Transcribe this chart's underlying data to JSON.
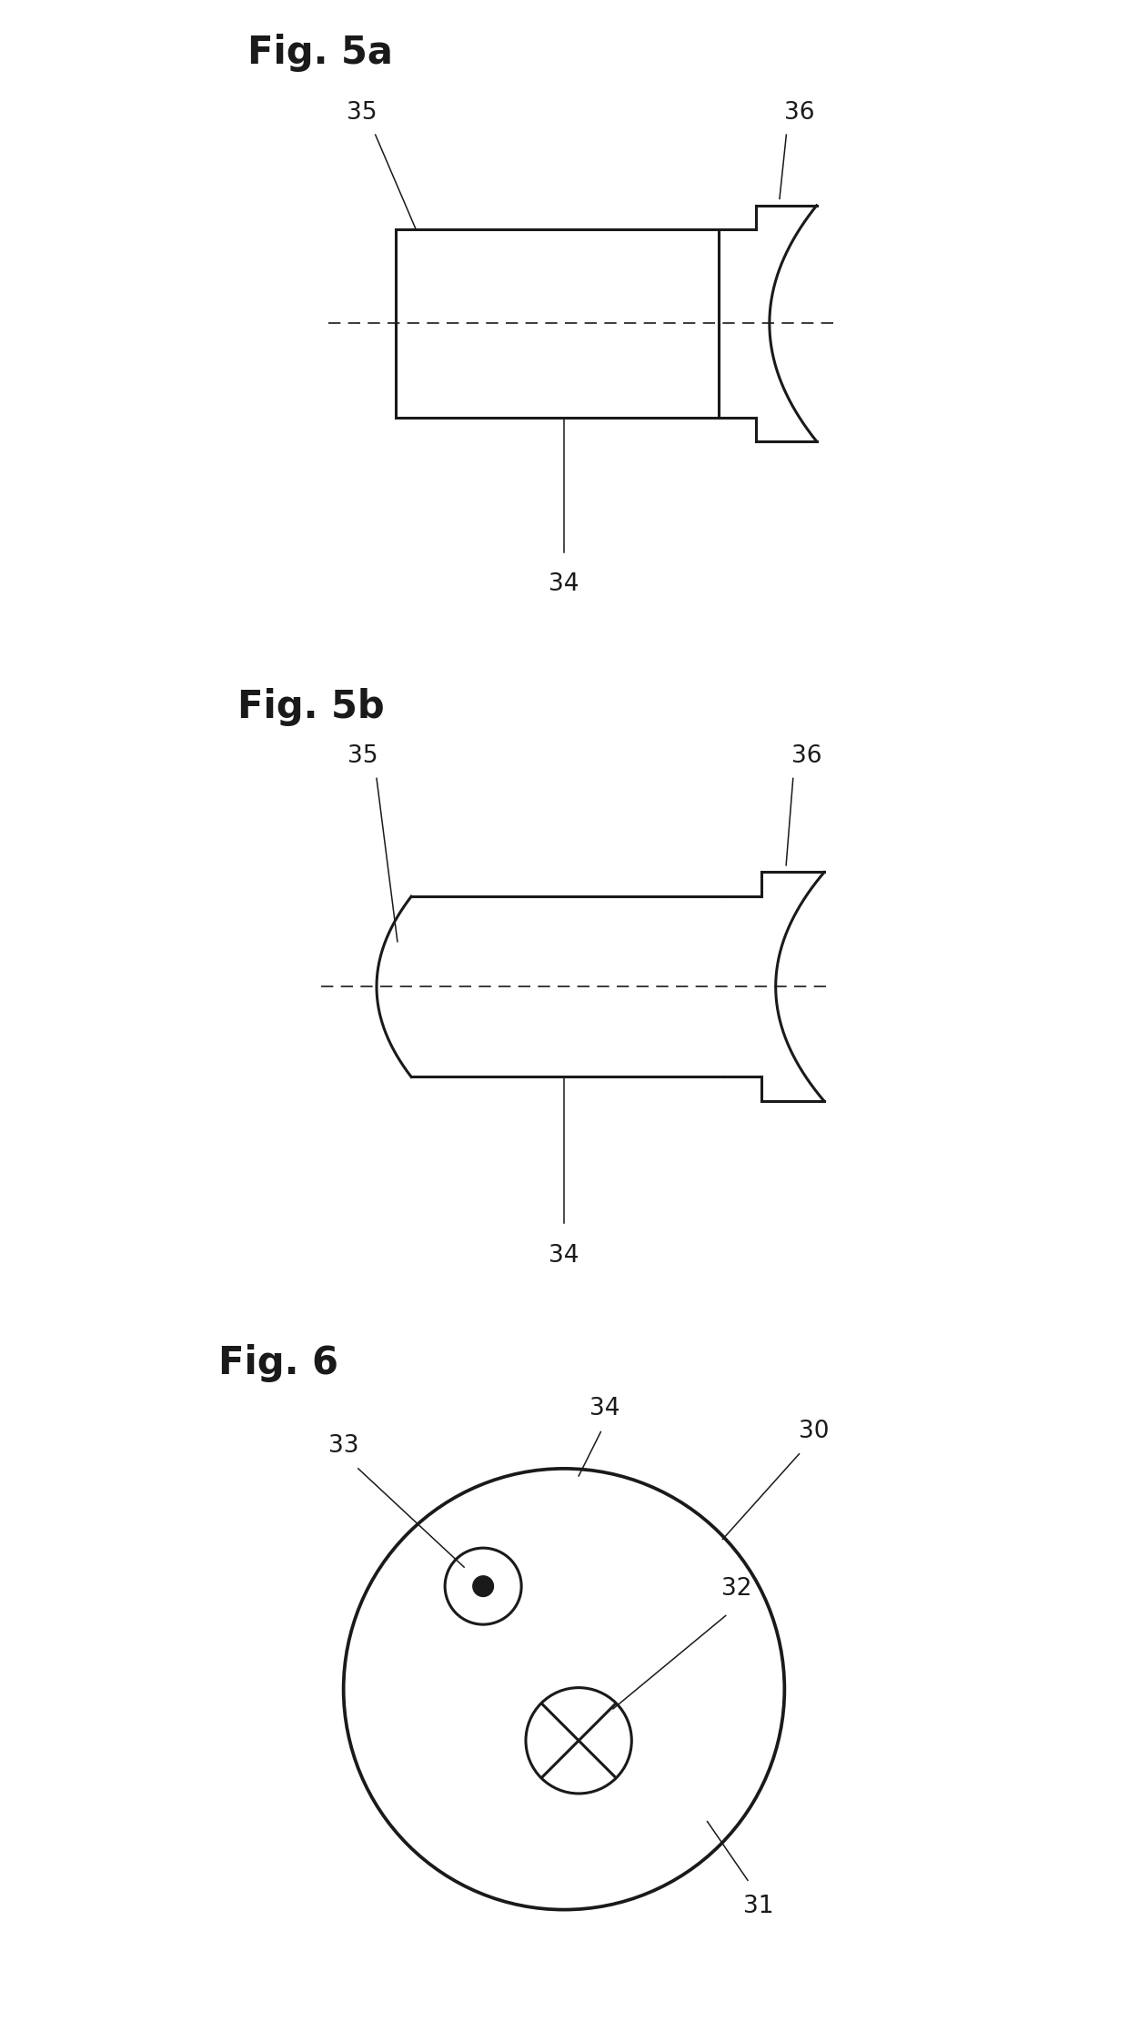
{
  "fig_title_5a": "Fig. 5a",
  "fig_title_5b": "Fig. 5b",
  "fig_title_6": "Fig. 6",
  "bg_color": "#ffffff",
  "line_color": "#1a1a1a",
  "fig5a_label_35": "35",
  "fig5a_label_36": "36",
  "fig5a_label_34": "34",
  "fig5b_label_35": "35",
  "fig5b_label_36": "36",
  "fig5b_label_34": "34",
  "fig6_label_30": "30",
  "fig6_label_31": "31",
  "fig6_label_32": "32",
  "fig6_label_33": "33",
  "fig6_label_34": "34"
}
